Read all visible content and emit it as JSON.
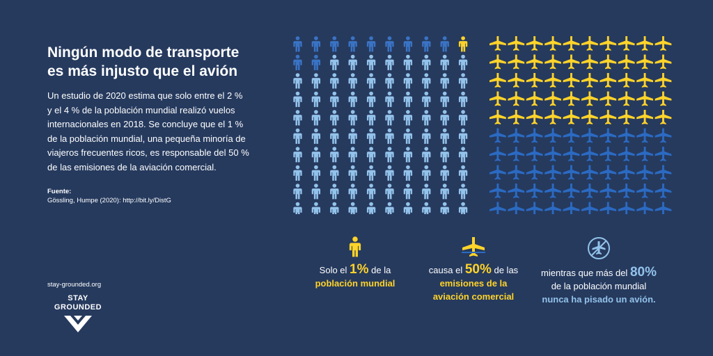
{
  "title": "Ningún modo de transporte es más injusto que el avión",
  "body": "Un estudio de 2020 estima que solo entre el 2 % y el 4 % de la población mundial realizó vuelos internacionales en 2018. Se concluye que el 1 % de la población mundial, una pequeña minoría de viajeros frecuentes ricos, es responsable del 50 % de las emisiones de la aviación comercial.",
  "source": {
    "label": "Fuente:",
    "text": "Gössling, Humpe (2020): http://bit.ly/DistG"
  },
  "site": "stay-grounded.org",
  "logo": {
    "line1": "STAY",
    "line2": "GROUNDED"
  },
  "people_grid": {
    "rows": 10,
    "cols": 10,
    "flyers_yellow": 1,
    "flyers_dark": 12,
    "colors": {
      "yellow": "#ffd32a",
      "dark": "#3a73c4",
      "light": "#93c2ea"
    }
  },
  "planes_grid": {
    "rows": 10,
    "cols": 10,
    "yellow_rows": 5,
    "colors": {
      "yellow": "#ffd32a",
      "blue": "#2b6ac2"
    }
  },
  "stats": [
    {
      "icon": "person-icon",
      "pre": "Solo el ",
      "big": "1%",
      "post": " de la",
      "highlight": "población mundial"
    },
    {
      "icon": "plane-icon",
      "pre": "causa el ",
      "big": "50%",
      "post": " de las",
      "highlight": "emisiones de la aviación comercial"
    },
    {
      "icon": "no-plane-icon",
      "pre": "mientras que más del ",
      "big": "80%",
      "post": "de la población mundial",
      "highlight": "nunca ha pisado un avión."
    }
  ]
}
